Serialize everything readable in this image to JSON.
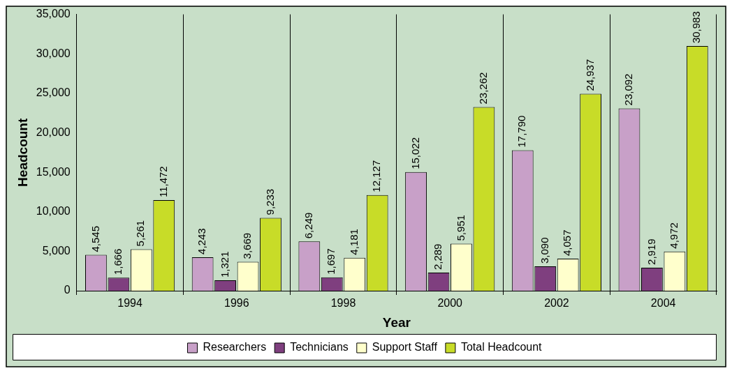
{
  "chart_data": {
    "type": "bar",
    "xlabel": "Year",
    "ylabel": "Headcount",
    "categories": [
      "1994",
      "1996",
      "1998",
      "2000",
      "2002",
      "2004"
    ],
    "series": [
      {
        "name": "Researchers",
        "color": "#c8a0c8",
        "values": [
          4545,
          4243,
          6249,
          15022,
          17790,
          23092
        ],
        "value_labels": [
          "4,545",
          "4,243",
          "6,249",
          "15,022",
          "17,790",
          "23,092"
        ]
      },
      {
        "name": "Technicians",
        "color": "#7f3f7f",
        "values": [
          1666,
          1321,
          1697,
          2289,
          3090,
          2919
        ],
        "value_labels": [
          "1,666",
          "1,321",
          "1,697",
          "2,289",
          "3,090",
          "2,919"
        ]
      },
      {
        "name": "Support Staff",
        "color": "#ffffcc",
        "values": [
          5261,
          3669,
          4181,
          5951,
          4057,
          4972
        ],
        "value_labels": [
          "5,261",
          "3,669",
          "4,181",
          "5,951",
          "4,057",
          "4,972"
        ]
      },
      {
        "name": "Total Headcount",
        "color": "#c8dc28",
        "values": [
          11472,
          9233,
          12127,
          23262,
          24937,
          30983
        ],
        "value_labels": [
          "11,472",
          "9,233",
          "12,127",
          "23,262",
          "24,937",
          "30,983"
        ]
      }
    ],
    "ylim": [
      0,
      35000
    ],
    "yticks": [
      {
        "value": 0,
        "label": "0"
      },
      {
        "value": 5000,
        "label": "5,000"
      },
      {
        "value": 10000,
        "label": "10,000"
      },
      {
        "value": 15000,
        "label": "15,000"
      },
      {
        "value": 20000,
        "label": "20,000"
      },
      {
        "value": 25000,
        "label": "25,000"
      },
      {
        "value": 30000,
        "label": "30,000"
      },
      {
        "value": 35000,
        "label": "35,000"
      }
    ],
    "grid": "x",
    "legend": "bottom"
  }
}
